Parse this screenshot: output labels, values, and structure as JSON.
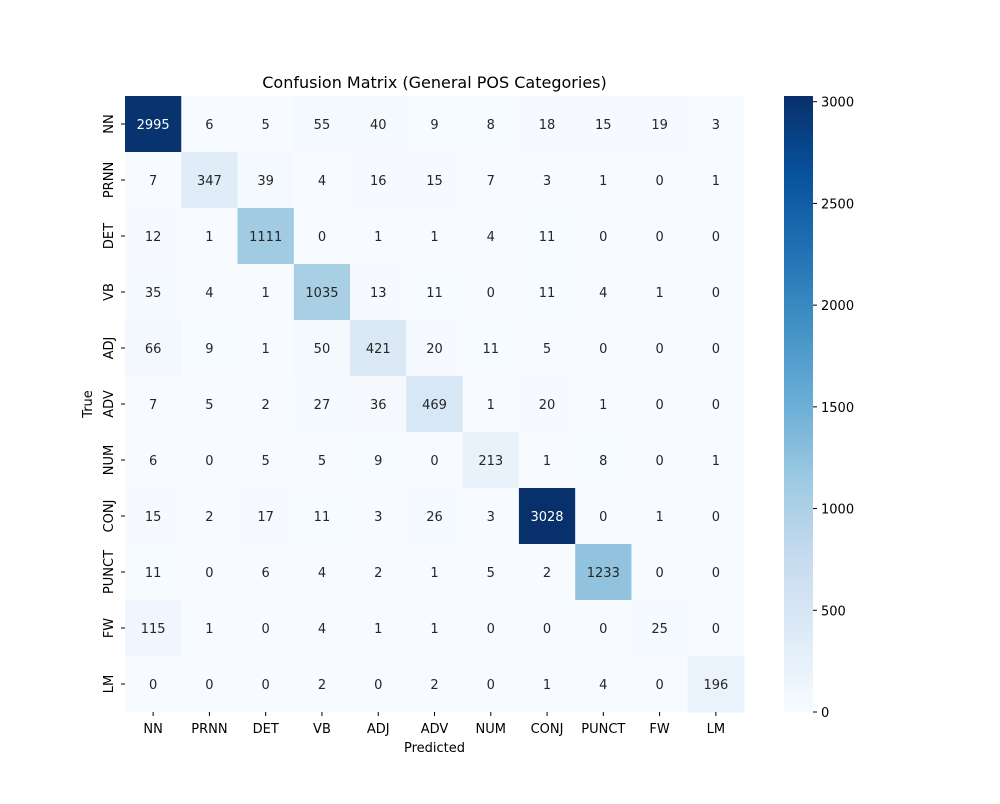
{
  "chart_data": {
    "type": "heatmap",
    "title": "Confusion Matrix (General POS Categories)",
    "xlabel": "Predicted",
    "ylabel": "True",
    "x_categories": [
      "NN",
      "PRNN",
      "DET",
      "VB",
      "ADJ",
      "ADV",
      "NUM",
      "CONJ",
      "PUNCT",
      "FW",
      "LM"
    ],
    "y_categories": [
      "NN",
      "PRNN",
      "DET",
      "VB",
      "ADJ",
      "ADV",
      "NUM",
      "CONJ",
      "PUNCT",
      "FW",
      "LM"
    ],
    "values": [
      [
        2995,
        6,
        5,
        55,
        40,
        9,
        8,
        18,
        15,
        19,
        3
      ],
      [
        7,
        347,
        39,
        4,
        16,
        15,
        7,
        3,
        1,
        0,
        1
      ],
      [
        12,
        1,
        1111,
        0,
        1,
        1,
        4,
        11,
        0,
        0,
        0
      ],
      [
        35,
        4,
        1,
        1035,
        13,
        11,
        0,
        11,
        4,
        1,
        0
      ],
      [
        66,
        9,
        1,
        50,
        421,
        20,
        11,
        5,
        0,
        0,
        0
      ],
      [
        7,
        5,
        2,
        27,
        36,
        469,
        1,
        20,
        1,
        0,
        0
      ],
      [
        6,
        0,
        5,
        5,
        9,
        0,
        213,
        1,
        8,
        0,
        1
      ],
      [
        15,
        2,
        17,
        11,
        3,
        26,
        3,
        3028,
        0,
        1,
        0
      ],
      [
        11,
        0,
        6,
        4,
        2,
        1,
        5,
        2,
        1233,
        0,
        0
      ],
      [
        115,
        1,
        0,
        4,
        1,
        1,
        0,
        0,
        0,
        25,
        0
      ],
      [
        0,
        0,
        0,
        2,
        0,
        2,
        0,
        1,
        4,
        0,
        196
      ]
    ],
    "colorbar": {
      "min": 0,
      "max": 3028,
      "ticks": [
        0,
        500,
        1000,
        1500,
        2000,
        2500,
        3000
      ],
      "colormap": "Blues"
    },
    "grid": false,
    "legend": "colorbar-right"
  }
}
